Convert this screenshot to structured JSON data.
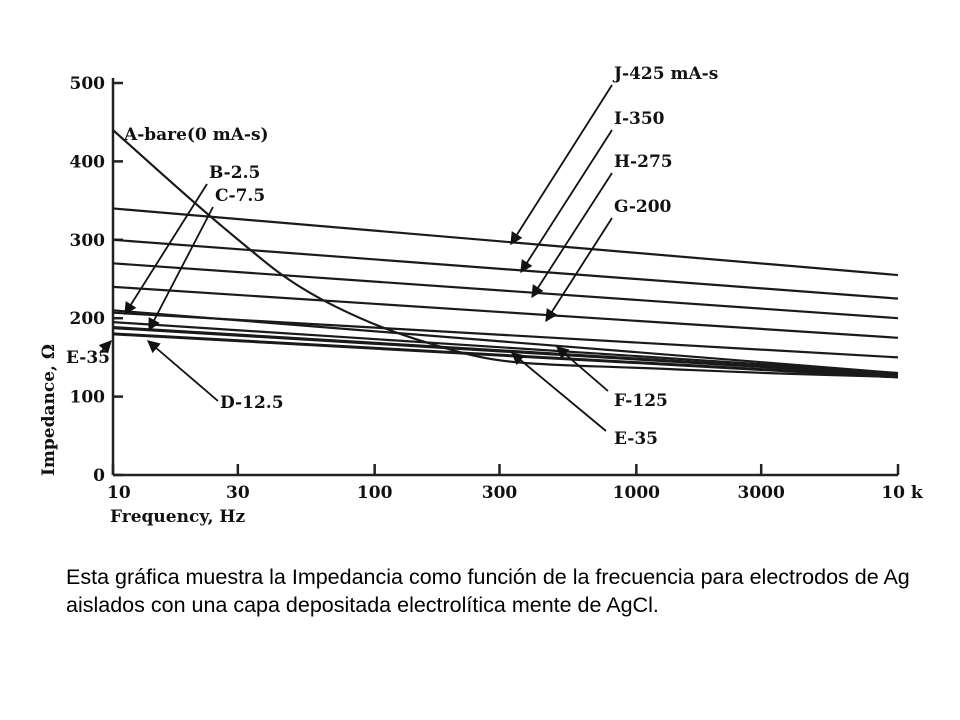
{
  "caption": "Esta gráfica muestra la Impedancia como función de la frecuencia para electrodos de Ag aislados con una capa depositada electrolítica mente de AgCl.",
  "chart_data": {
    "type": "line",
    "title": "",
    "xlabel": "Frequency, Hz",
    "ylabel": "Impedance, Ω",
    "x_scale": "log",
    "xlim": [
      10,
      10000
    ],
    "ylim": [
      0,
      500
    ],
    "x_ticks": [
      {
        "value": 10,
        "label": "10"
      },
      {
        "value": 30,
        "label": "30"
      },
      {
        "value": 100,
        "label": "100"
      },
      {
        "value": 300,
        "label": "300"
      },
      {
        "value": 1000,
        "label": "1000"
      },
      {
        "value": 3000,
        "label": "3000"
      },
      {
        "value": 10000,
        "label": "10 k"
      }
    ],
    "y_ticks": [
      {
        "value": 0,
        "label": "0"
      },
      {
        "value": 100,
        "label": "100"
      },
      {
        "value": 200,
        "label": "200"
      },
      {
        "value": 300,
        "label": "300"
      },
      {
        "value": 400,
        "label": "400"
      },
      {
        "value": 500,
        "label": "500"
      }
    ],
    "grid": false,
    "series": [
      {
        "name": "J-425 mA-s",
        "x": [
          10,
          10000
        ],
        "y": [
          340,
          255
        ]
      },
      {
        "name": "I-350",
        "x": [
          10,
          10000
        ],
        "y": [
          300,
          225
        ]
      },
      {
        "name": "H-275",
        "x": [
          10,
          10000
        ],
        "y": [
          270,
          200
        ]
      },
      {
        "name": "G-200",
        "x": [
          10,
          10000
        ],
        "y": [
          240,
          175
        ]
      },
      {
        "name": "F-125",
        "x": [
          10,
          10000
        ],
        "y": [
          207,
          150
        ]
      },
      {
        "name": "E-35",
        "x": [
          10,
          10000
        ],
        "y": [
          188,
          128
        ]
      },
      {
        "name": "D-12.5",
        "x": [
          10,
          10000
        ],
        "y": [
          180,
          125
        ]
      },
      {
        "name": "C-7.5",
        "x": [
          10,
          10000
        ],
        "y": [
          195,
          130
        ]
      },
      {
        "name": "B-2.5",
        "x": [
          10,
          10000
        ],
        "y": [
          210,
          130
        ]
      },
      {
        "name": "A-bare(0 mA-s)",
        "x": [
          10,
          20,
          30,
          50,
          100,
          200,
          300,
          500,
          1000,
          3000,
          10000
        ],
        "y": [
          440,
          350,
          300,
          240,
          190,
          158,
          145,
          140,
          137,
          130,
          125
        ]
      }
    ],
    "annotations": [
      {
        "text": "J-425 mA-s",
        "series": "J-425 mA-s"
      },
      {
        "text": "I-350",
        "series": "I-350"
      },
      {
        "text": "H-275",
        "series": "H-275"
      },
      {
        "text": "G-200",
        "series": "G-200"
      },
      {
        "text": "F-125",
        "series": "F-125"
      },
      {
        "text": "E-35",
        "series": "E-35"
      },
      {
        "text": "E-35",
        "series": "E-35"
      },
      {
        "text": "D-12.5",
        "series": "D-12.5"
      },
      {
        "text": "C-7.5",
        "series": "C-7.5"
      },
      {
        "text": "B-2.5",
        "series": "B-2.5"
      },
      {
        "text": "A-bare(0 mA-s)",
        "series": "A-bare(0 mA-s)"
      }
    ]
  }
}
